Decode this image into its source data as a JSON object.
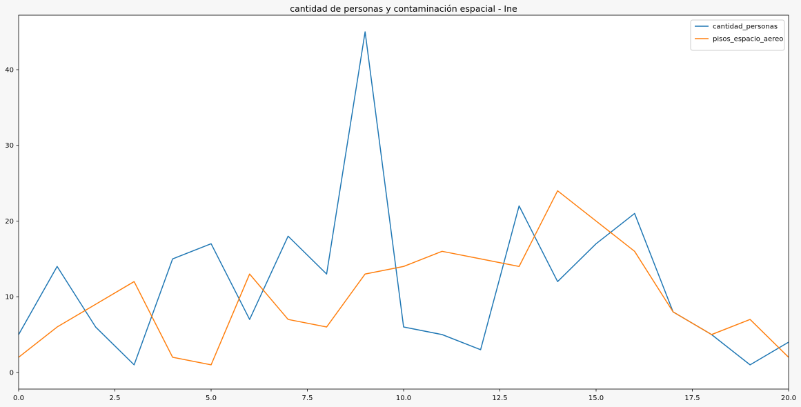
{
  "chart_data": {
    "type": "line",
    "title": "cantidad de personas y contaminación espacial - Ine",
    "xlabel": "",
    "ylabel": "",
    "xlim": [
      0,
      20
    ],
    "ylim": [
      -2.2,
      47.2
    ],
    "x_ticks": [
      0,
      2.5,
      5,
      7.5,
      10,
      12.5,
      15,
      17.5,
      20
    ],
    "x_tick_labels": [
      "0.0",
      "2.5",
      "5.0",
      "7.5",
      "10.0",
      "12.5",
      "15.0",
      "17.5",
      "20.0"
    ],
    "y_ticks": [
      0,
      10,
      20,
      30,
      40
    ],
    "y_tick_labels": [
      "0",
      "10",
      "20",
      "30",
      "40"
    ],
    "grid": false,
    "legend_position": "top-right",
    "x": [
      0,
      1,
      2,
      3,
      4,
      5,
      6,
      7,
      8,
      9,
      10,
      11,
      12,
      13,
      14,
      15,
      16,
      17,
      18,
      19,
      20
    ],
    "series": [
      {
        "name": "cantidad_personas",
        "color": "#1f77b4",
        "values": [
          5,
          14,
          6,
          1,
          15,
          17,
          7,
          18,
          13,
          45,
          6,
          5,
          3,
          22,
          12,
          17,
          21,
          8,
          5,
          1,
          4
        ]
      },
      {
        "name": "pisos_espacio_aereo",
        "color": "#ff7f0e",
        "values": [
          2,
          6,
          9,
          12,
          2,
          1,
          13,
          7,
          6,
          13,
          14,
          16,
          15,
          14,
          24,
          20,
          16,
          8,
          5,
          7,
          2
        ]
      }
    ]
  }
}
